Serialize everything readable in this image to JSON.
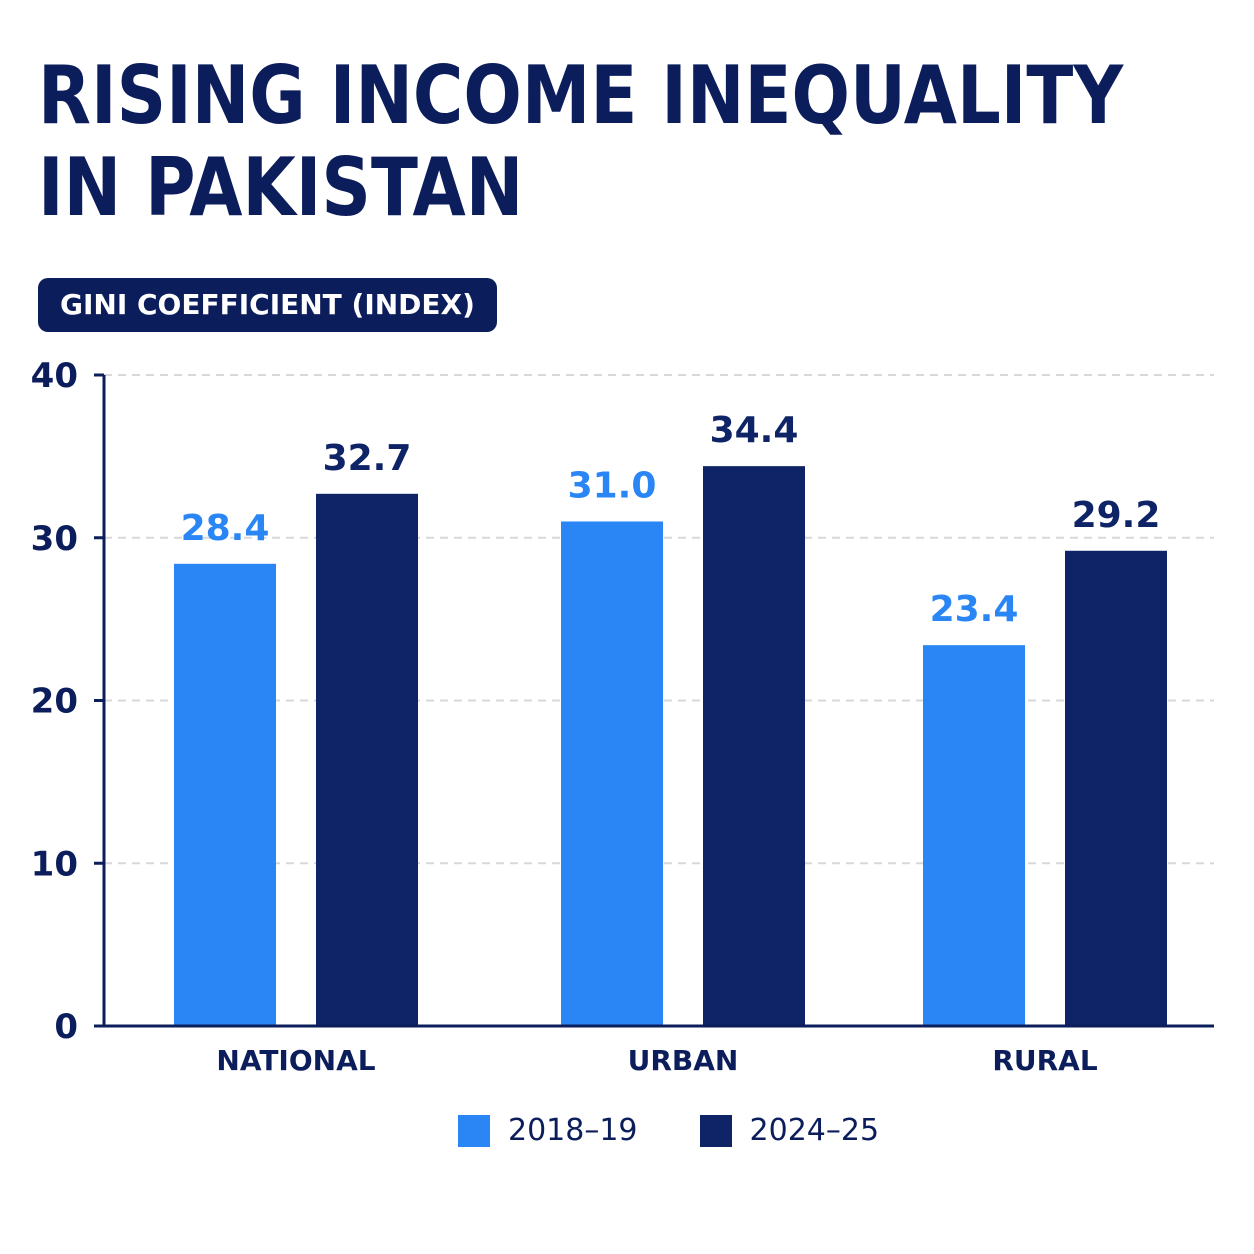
{
  "header": {
    "title_line1": "RISING INCOME INEQUALITY",
    "title_line2": "IN PAKISTAN",
    "badge": "GINI COEFFICIENT (INDEX)"
  },
  "colors": {
    "navy": "#0c1d5c",
    "series_2018": "#2a86f5",
    "series_2024": "#0e2466",
    "grid": "#d8d8d8"
  },
  "chart_data": {
    "type": "bar",
    "ylabel": "GINI COEFFICIENT (INDEX)",
    "ylim": [
      0,
      40
    ],
    "yticks": [
      0,
      10,
      20,
      30,
      40
    ],
    "grid": true,
    "legend_position": "bottom-center",
    "categories": [
      "NATIONAL",
      "URBAN",
      "RURAL"
    ],
    "series": [
      {
        "name": "2018–19",
        "color": "#2a86f5",
        "values": [
          28.4,
          31.0,
          23.4
        ],
        "labels": [
          "28.4",
          "31.0",
          "23.4"
        ]
      },
      {
        "name": "2024–25",
        "color": "#0e2466",
        "values": [
          32.7,
          34.4,
          29.2
        ],
        "labels": [
          "32.7",
          "34.4",
          "29.2"
        ]
      }
    ]
  }
}
